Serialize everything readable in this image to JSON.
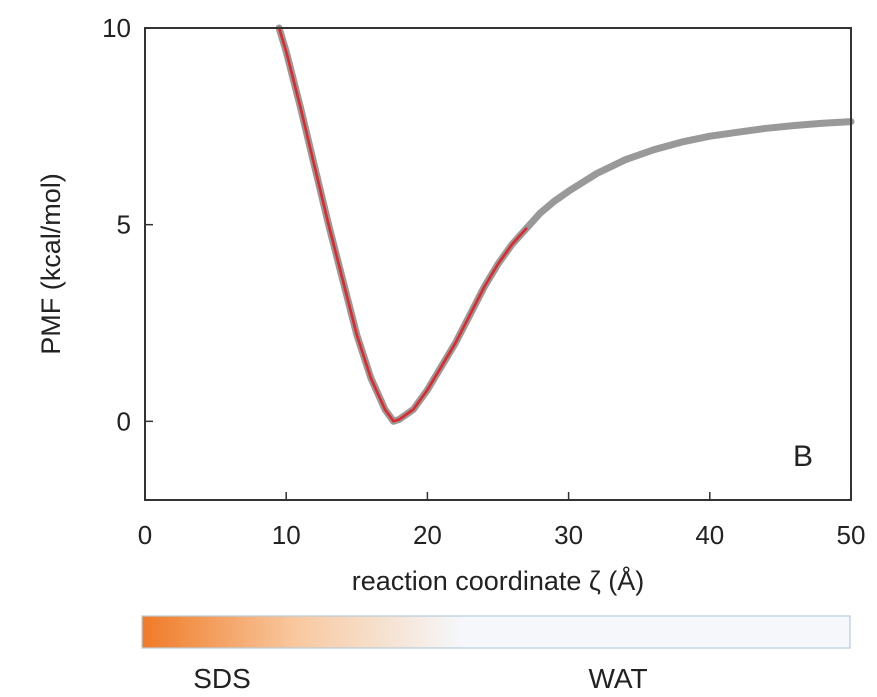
{
  "chart_data": {
    "type": "line",
    "xlabel": "reaction coordinate ζ (Å)",
    "ylabel": "PMF (kcal/mol)",
    "xlim": [
      0,
      50
    ],
    "ylim": [
      -2,
      10
    ],
    "xticks": [
      0,
      10,
      20,
      30,
      40,
      50
    ],
    "yticks": [
      0,
      5,
      10
    ],
    "panel_label": "B",
    "grid": false,
    "series": [
      {
        "color": "#999999",
        "x": [
          9.5,
          10,
          11,
          12,
          13,
          14,
          15,
          16,
          17,
          17.6,
          18,
          19,
          20,
          21,
          22,
          23,
          24,
          25,
          26,
          27,
          28,
          29,
          30,
          32,
          34,
          36,
          38,
          40,
          42,
          44,
          46,
          48,
          50
        ],
        "y": [
          10.0,
          9.4,
          8.0,
          6.5,
          5.0,
          3.6,
          2.2,
          1.1,
          0.3,
          0.0,
          0.05,
          0.3,
          0.8,
          1.4,
          2.0,
          2.7,
          3.4,
          4.0,
          4.5,
          4.9,
          5.3,
          5.6,
          5.85,
          6.3,
          6.65,
          6.9,
          7.1,
          7.25,
          7.35,
          7.45,
          7.52,
          7.58,
          7.62
        ]
      },
      {
        "color": "#e0272b",
        "x": [
          9.5,
          10,
          11,
          12,
          13,
          14,
          15,
          16,
          17,
          17.6,
          18,
          19,
          20,
          21,
          22,
          23,
          24,
          25,
          26,
          27
        ],
        "y": [
          10.0,
          9.4,
          8.0,
          6.5,
          5.0,
          3.6,
          2.2,
          1.1,
          0.3,
          0.0,
          0.05,
          0.3,
          0.8,
          1.4,
          2.0,
          2.7,
          3.4,
          4.0,
          4.5,
          4.9
        ]
      }
    ],
    "colorbar": {
      "colors": [
        "#f07a28",
        "#f8c9a0",
        "#f5f7fb"
      ],
      "labels": [
        "SDS",
        "WAT"
      ]
    }
  }
}
